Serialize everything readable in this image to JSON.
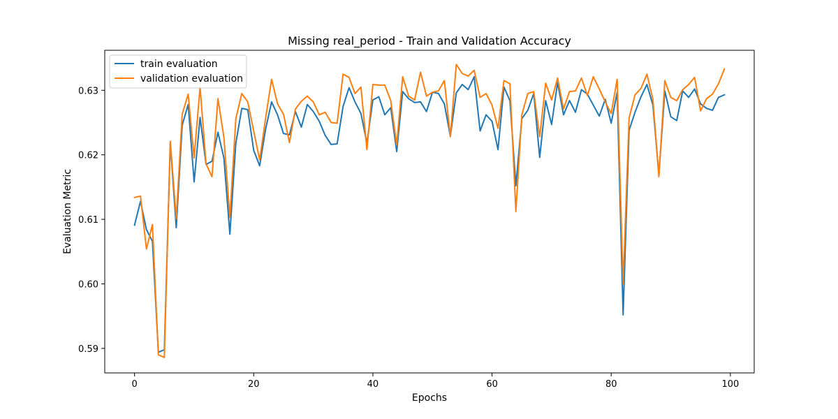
{
  "chart_data": {
    "type": "line",
    "title": "Missing real_period - Train and Validation Accuracy",
    "xlabel": "Epochs",
    "ylabel": "Evaluation Metric",
    "xlim": [
      -5,
      104
    ],
    "ylim": [
      0.5862,
      0.6362
    ],
    "xticks": [
      0,
      20,
      40,
      60,
      80,
      100
    ],
    "yticks": [
      0.59,
      0.6,
      0.61,
      0.62,
      0.63
    ],
    "ytick_labels": [
      "0.59",
      "0.60",
      "0.61",
      "0.62",
      "0.63"
    ],
    "grid": false,
    "legend_position": "upper-left",
    "x": [
      0,
      1,
      2,
      3,
      4,
      5,
      6,
      7,
      8,
      9,
      10,
      11,
      12,
      13,
      14,
      15,
      16,
      17,
      18,
      19,
      20,
      21,
      22,
      23,
      24,
      25,
      26,
      27,
      28,
      29,
      30,
      31,
      32,
      33,
      34,
      35,
      36,
      37,
      38,
      39,
      40,
      41,
      42,
      43,
      44,
      45,
      46,
      47,
      48,
      49,
      50,
      51,
      52,
      53,
      54,
      55,
      56,
      57,
      58,
      59,
      60,
      61,
      62,
      63,
      64,
      65,
      66,
      67,
      68,
      69,
      70,
      71,
      72,
      73,
      74,
      75,
      76,
      77,
      78,
      79,
      80,
      81,
      82,
      83,
      84,
      85,
      86,
      87,
      88,
      89,
      90,
      91,
      92,
      93,
      94,
      95,
      96,
      97,
      98,
      99
    ],
    "series": [
      {
        "name": "train evaluation",
        "color": "#1f77b4",
        "values": [
          0.6091,
          0.6128,
          0.6084,
          0.6066,
          0.5894,
          0.5898,
          0.6219,
          0.6087,
          0.6246,
          0.6278,
          0.6158,
          0.6258,
          0.6185,
          0.619,
          0.6235,
          0.6195,
          0.6077,
          0.6218,
          0.6272,
          0.627,
          0.6207,
          0.6183,
          0.624,
          0.6282,
          0.6262,
          0.6233,
          0.6231,
          0.6267,
          0.6243,
          0.6278,
          0.6267,
          0.6252,
          0.623,
          0.6216,
          0.6217,
          0.6275,
          0.6304,
          0.6282,
          0.6264,
          0.6218,
          0.6285,
          0.629,
          0.6262,
          0.6273,
          0.6205,
          0.6298,
          0.6287,
          0.6281,
          0.6282,
          0.6267,
          0.6297,
          0.6295,
          0.6279,
          0.6229,
          0.6296,
          0.6309,
          0.6301,
          0.6321,
          0.6237,
          0.6262,
          0.6252,
          0.6208,
          0.6305,
          0.6284,
          0.6152,
          0.6256,
          0.6269,
          0.6295,
          0.6196,
          0.6284,
          0.6247,
          0.6312,
          0.6262,
          0.6284,
          0.6266,
          0.6301,
          0.6294,
          0.6277,
          0.626,
          0.6286,
          0.6249,
          0.6297,
          0.5952,
          0.6238,
          0.6266,
          0.629,
          0.6309,
          0.6277,
          0.6169,
          0.6299,
          0.6259,
          0.6253,
          0.6299,
          0.6289,
          0.6302,
          0.6279,
          0.6272,
          0.6269,
          0.6289,
          0.6293
        ]
      },
      {
        "name": "validation evaluation",
        "color": "#ff7f0e",
        "values": [
          0.6134,
          0.6136,
          0.6054,
          0.6092,
          0.589,
          0.5886,
          0.6221,
          0.6101,
          0.6263,
          0.6294,
          0.6195,
          0.6305,
          0.6186,
          0.6166,
          0.6287,
          0.6227,
          0.6103,
          0.6256,
          0.6295,
          0.6282,
          0.6237,
          0.6192,
          0.6257,
          0.6317,
          0.6279,
          0.6263,
          0.6219,
          0.6271,
          0.6283,
          0.6291,
          0.6282,
          0.6262,
          0.6266,
          0.625,
          0.6249,
          0.6325,
          0.632,
          0.6295,
          0.6305,
          0.6208,
          0.6309,
          0.6308,
          0.6308,
          0.6284,
          0.6215,
          0.6321,
          0.6291,
          0.6285,
          0.6328,
          0.6291,
          0.6297,
          0.6299,
          0.6315,
          0.6228,
          0.634,
          0.6326,
          0.6322,
          0.6331,
          0.6289,
          0.6295,
          0.6277,
          0.6241,
          0.6315,
          0.631,
          0.6112,
          0.6262,
          0.6295,
          0.6298,
          0.6228,
          0.6311,
          0.6285,
          0.6319,
          0.6271,
          0.6298,
          0.6299,
          0.6319,
          0.6292,
          0.6321,
          0.6302,
          0.6282,
          0.6264,
          0.6317,
          0.6,
          0.6257,
          0.6293,
          0.6303,
          0.6325,
          0.6286,
          0.6166,
          0.6315,
          0.6289,
          0.6284,
          0.6301,
          0.6309,
          0.632,
          0.6268,
          0.6287,
          0.6294,
          0.631,
          0.6333
        ]
      }
    ]
  }
}
